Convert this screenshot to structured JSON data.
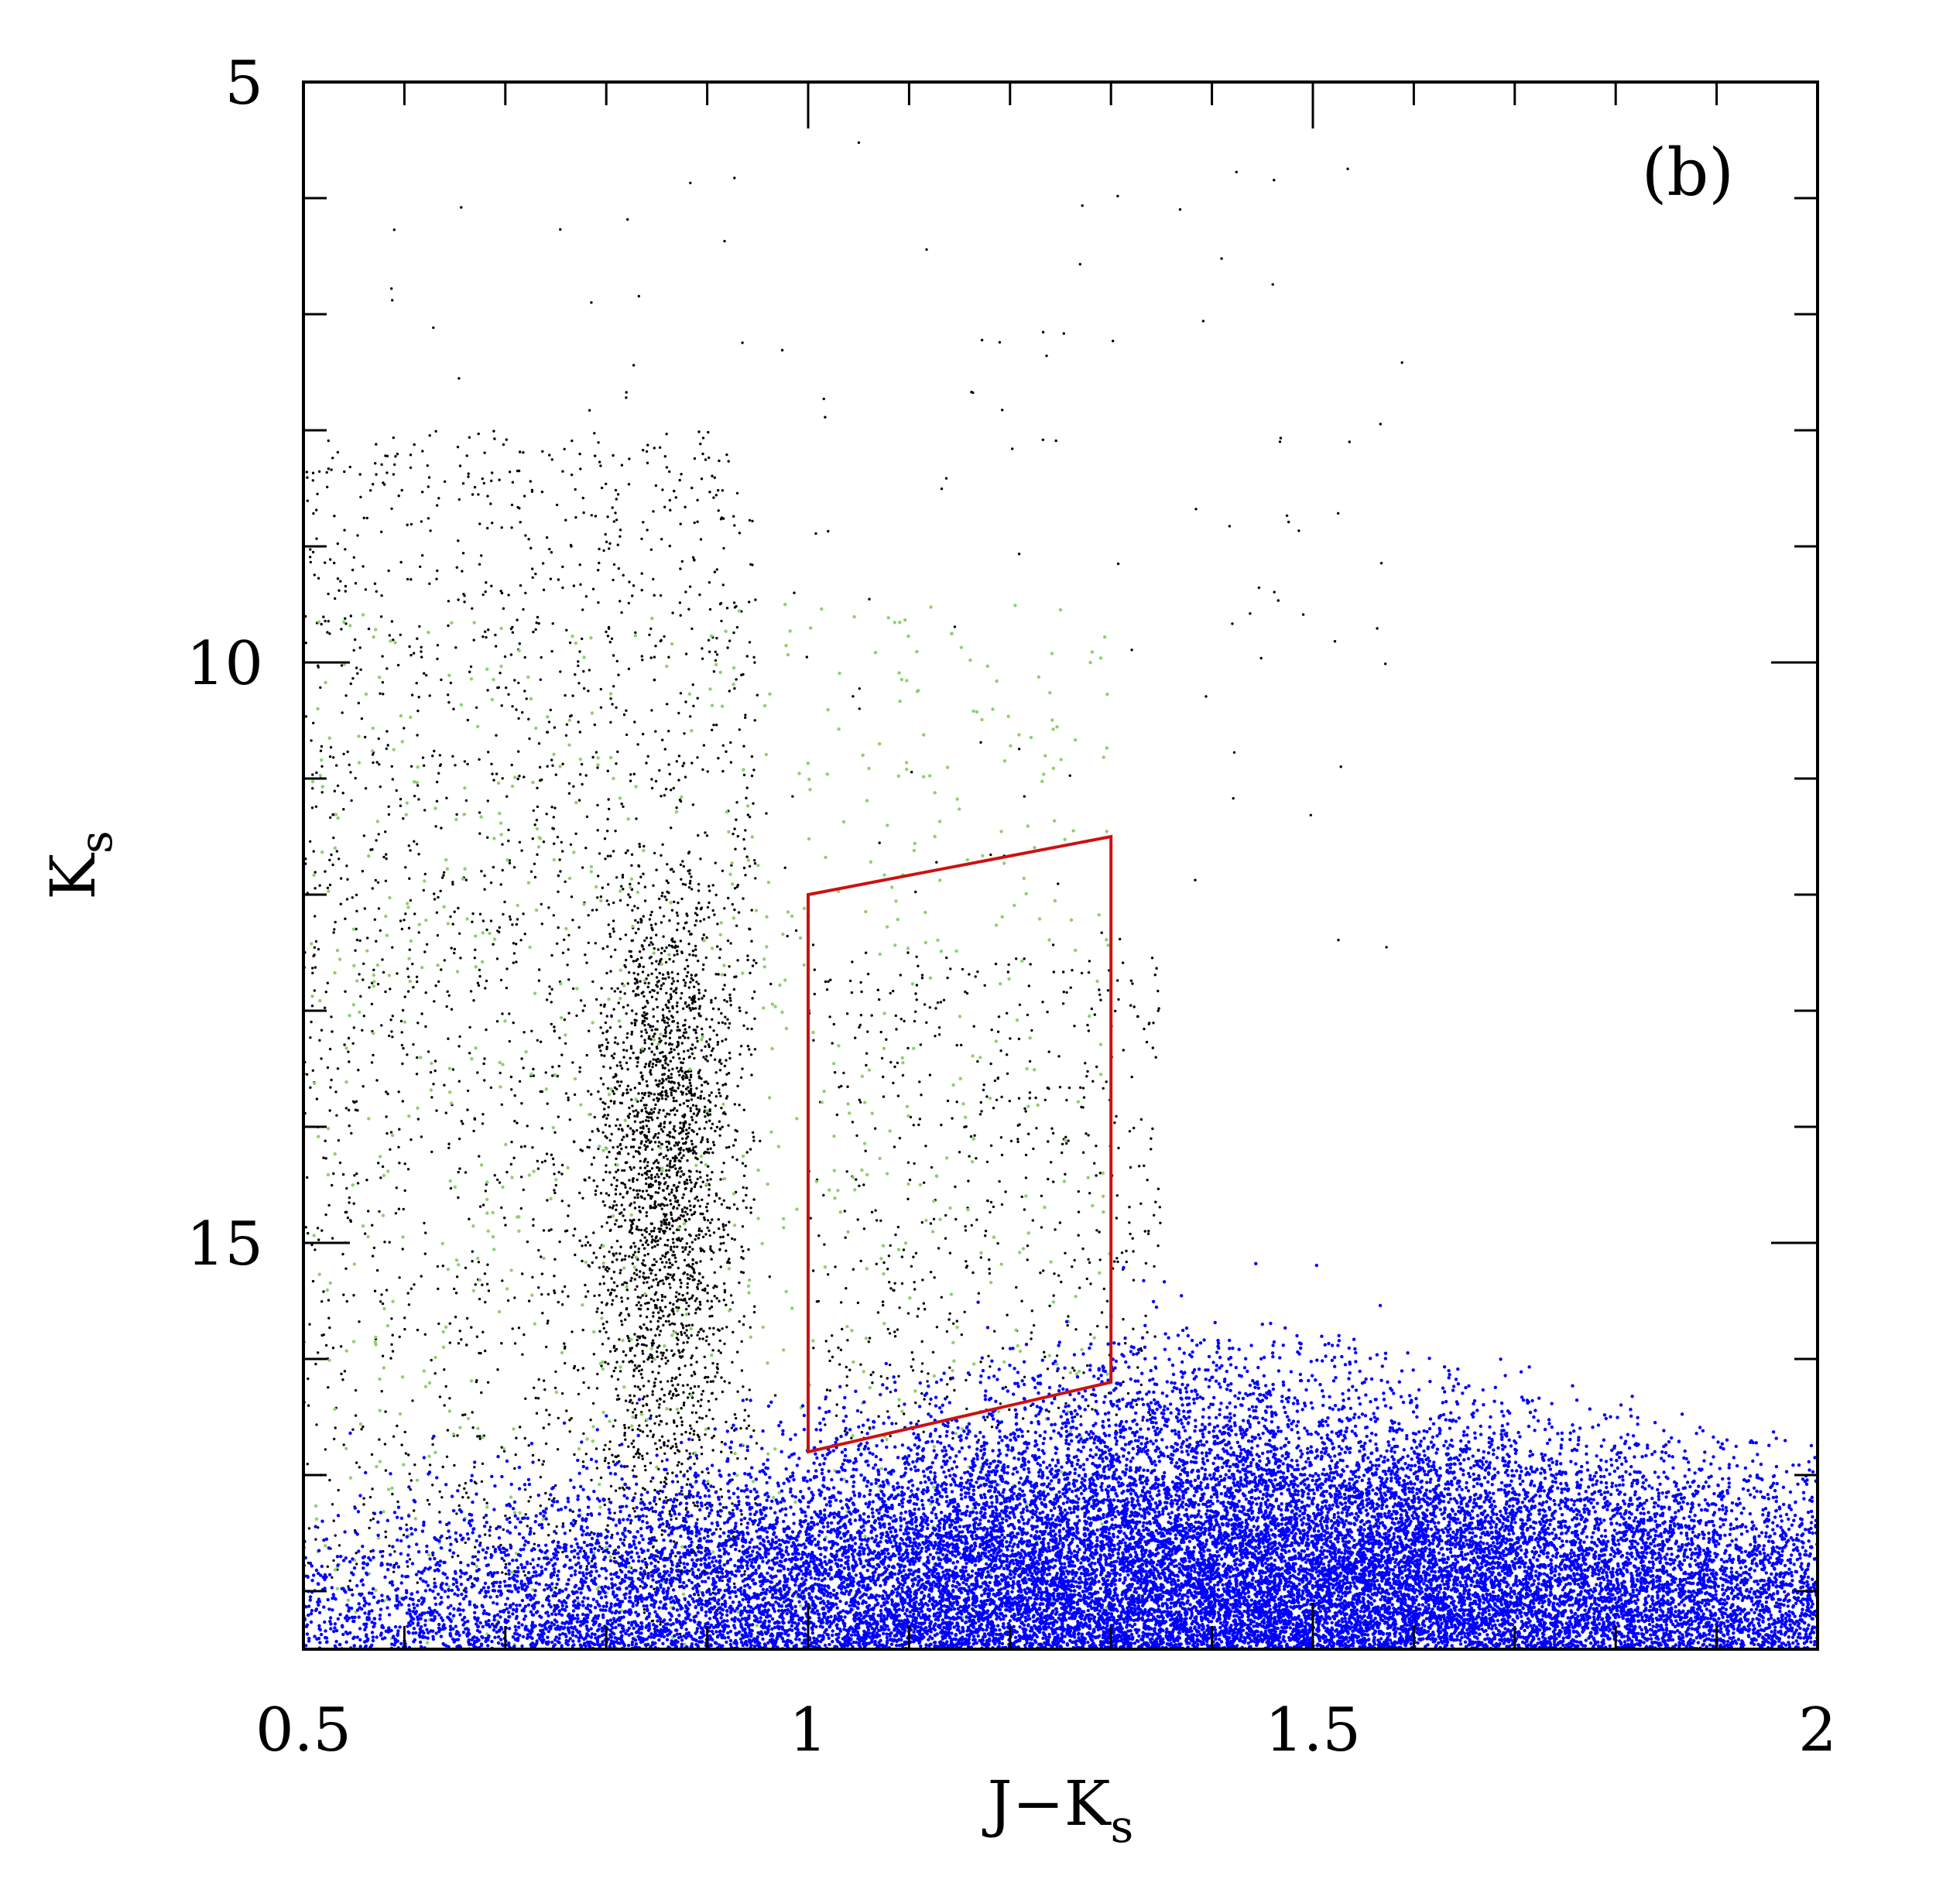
{
  "chart_data": {
    "type": "scatter",
    "panel_label": "(b)",
    "xlabel": {
      "main": "J−K",
      "sub": "s"
    },
    "ylabel": {
      "main": "K",
      "sub": "s"
    },
    "xlim": [
      0.5,
      2.0
    ],
    "ylim": [
      18.5,
      5.0
    ],
    "y_inverted": true,
    "x_ticks": [
      {
        "value": 0.5,
        "label": "0.5"
      },
      {
        "value": 1.0,
        "label": "1"
      },
      {
        "value": 1.5,
        "label": "1.5"
      },
      {
        "value": 2.0,
        "label": "2"
      }
    ],
    "y_ticks": [
      {
        "value": 5,
        "label": "5"
      },
      {
        "value": 10,
        "label": "10"
      },
      {
        "value": 15,
        "label": "15"
      }
    ],
    "x_minor_step": 0.1,
    "y_minor_step": 1,
    "grid": false,
    "colors": {
      "field_stars": "#000000",
      "green_stars": "#8fcf6f",
      "blue_stars": "#0000ff",
      "selection_box": "#cc1111"
    },
    "selection_box": {
      "vertices": [
        [
          1.0,
          12.0
        ],
        [
          1.3,
          11.5
        ],
        [
          1.3,
          16.2
        ],
        [
          1.0,
          16.8
        ]
      ]
    },
    "series": [
      {
        "key": "black_main_sequence",
        "color": "#000000",
        "density": "high, ridge near J−K 0.85, Ks 11–17"
      },
      {
        "key": "green_points",
        "color": "#8fcf6f",
        "density": "sparse, J−K 0.5–1.3, Ks 9–18"
      },
      {
        "key": "blue_dense_cloud",
        "color": "#0000ff",
        "density": "very high, centred J−K 1.4, Ks 17.5–18.5"
      }
    ]
  }
}
